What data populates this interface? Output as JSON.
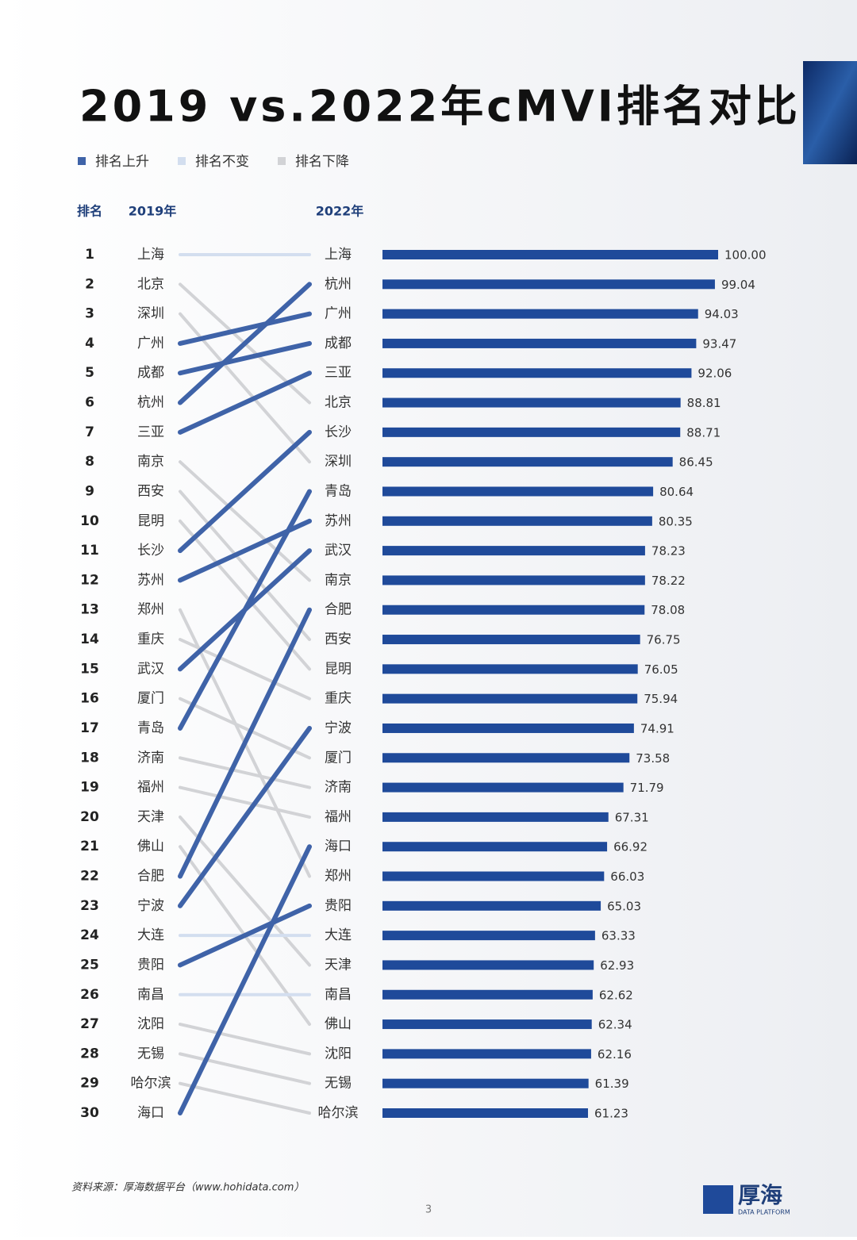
{
  "title": "2019 vs.2022年cMVI排名对比",
  "legend": [
    {
      "name": "排名上升",
      "color": "#3f63a8"
    },
    {
      "name": "排名不变",
      "color": "#d3deef"
    },
    {
      "name": "排名下降",
      "color": "#d2d3d6"
    }
  ],
  "headers": {
    "rank": "排名",
    "y2019": "2019年",
    "y2022": "2022年"
  },
  "ranks": [
    1,
    2,
    3,
    4,
    5,
    6,
    7,
    8,
    9,
    10,
    11,
    12,
    13,
    14,
    15,
    16,
    17,
    18,
    19,
    20,
    21,
    22,
    23,
    24,
    25,
    26,
    27,
    28,
    29,
    30
  ],
  "cities_2019": [
    "上海",
    "北京",
    "深圳",
    "广州",
    "成都",
    "杭州",
    "三亚",
    "南京",
    "西安",
    "昆明",
    "长沙",
    "苏州",
    "郑州",
    "重庆",
    "武汉",
    "厦门",
    "青岛",
    "济南",
    "福州",
    "天津",
    "佛山",
    "合肥",
    "宁波",
    "大连",
    "贵阳",
    "南昌",
    "沈阳",
    "无锡",
    "哈尔滨",
    "海口"
  ],
  "chart_data": {
    "type": "bar",
    "orientation": "horizontal",
    "categories": [
      "上海",
      "杭州",
      "广州",
      "成都",
      "三亚",
      "北京",
      "长沙",
      "深圳",
      "青岛",
      "苏州",
      "武汉",
      "南京",
      "合肥",
      "西安",
      "昆明",
      "重庆",
      "宁波",
      "厦门",
      "济南",
      "福州",
      "海口",
      "郑州",
      "贵阳",
      "大连",
      "天津",
      "南昌",
      "佛山",
      "沈阳",
      "无锡",
      "哈尔滨"
    ],
    "values": [
      100.0,
      99.04,
      94.03,
      93.47,
      92.06,
      88.81,
      88.71,
      86.45,
      80.64,
      80.35,
      78.23,
      78.22,
      78.08,
      76.75,
      76.05,
      75.94,
      74.91,
      73.58,
      71.79,
      67.31,
      66.92,
      66.03,
      65.03,
      63.33,
      62.93,
      62.62,
      62.34,
      62.16,
      61.39,
      61.23
    ],
    "value_labels": [
      "100.00",
      "99.04",
      "94.03",
      "93.47",
      "92.06",
      "88.81",
      "88.71",
      "86.45",
      "80.64",
      "80.35",
      "78.23",
      "78.22",
      "78.08",
      "76.75",
      "76.05",
      "75.94",
      "74.91",
      "73.58",
      "71.79",
      "67.31",
      "66.92",
      "66.03",
      "65.03",
      "63.33",
      "62.93",
      "62.62",
      "62.34",
      "62.16",
      "61.39",
      "61.23"
    ],
    "color": "#1f4a9a",
    "xlim": [
      0,
      100
    ]
  },
  "source": "资料来源：厚海数据平台（www.hohidata.com）",
  "logo": {
    "name": "厚海",
    "sub": "DATA PLATFORM"
  },
  "page_number": "3"
}
